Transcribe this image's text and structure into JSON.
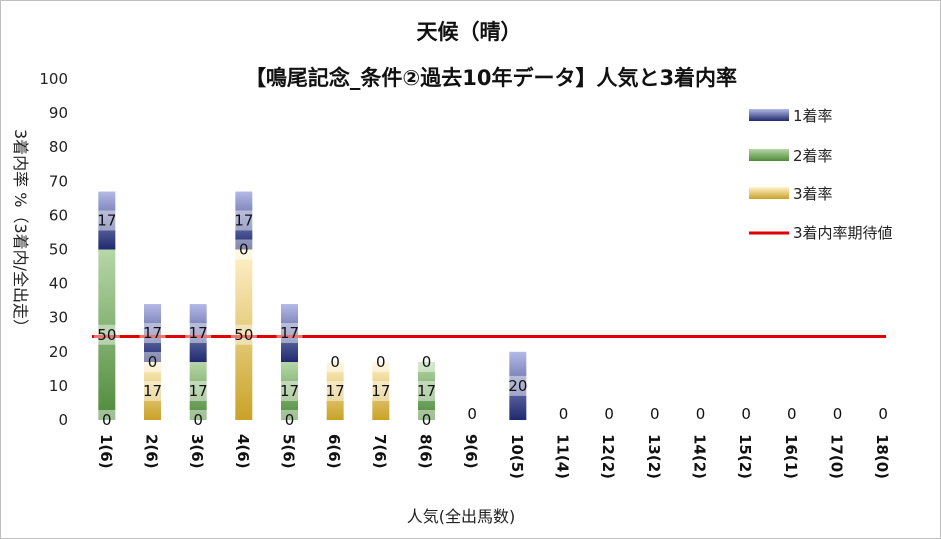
{
  "chart_data": {
    "type": "bar",
    "title": "天候（晴）",
    "subtitle": "【鳴尾記念_条件②過去10年データ】人気と3着内率",
    "xlabel": "人気(全出馬数)",
    "ylabel": "3着内率 %（3着内/全出走）",
    "ylim": [
      0,
      100
    ],
    "yticks": [
      "0",
      "10",
      "20",
      "30",
      "40",
      "50",
      "60",
      "70",
      "80",
      "90",
      "100"
    ],
    "grid": false,
    "legend_position": "right",
    "stacked": true,
    "categories": [
      "1(6)",
      "2(6)",
      "3(6)",
      "4(6)",
      "5(6)",
      "6(6)",
      "7(6)",
      "8(6)",
      "9(6)",
      "10(5)",
      "11(4)",
      "12(2)",
      "13(2)",
      "14(2)",
      "15(2)",
      "16(1)",
      "17(0)",
      "18(0)"
    ],
    "series": [
      {
        "name": "3着率",
        "color": "#c9a227",
        "values": [
          0,
          17,
          0,
          50,
          0,
          17,
          17,
          0,
          0,
          0,
          0,
          0,
          0,
          0,
          0,
          0,
          0,
          0
        ]
      },
      {
        "name": "2着率",
        "color": "#6aa84f",
        "values": [
          50,
          0,
          17,
          0,
          17,
          0,
          0,
          17,
          0,
          0,
          0,
          0,
          0,
          0,
          0,
          0,
          0,
          0
        ]
      },
      {
        "name": "1着率",
        "color": "#2f3f8f",
        "values": [
          17,
          17,
          17,
          17,
          17,
          0,
          0,
          0,
          0,
          20,
          0,
          0,
          0,
          0,
          0,
          0,
          0,
          0
        ]
      }
    ],
    "data_labels": {
      "1(6)": [
        "0",
        "50",
        "17"
      ],
      "2(6)": [
        "17",
        "0",
        "17"
      ],
      "3(6)": [
        "0",
        "17",
        "17"
      ],
      "4(6)": [
        "50",
        "0",
        "17"
      ],
      "5(6)": [
        "0",
        "17",
        "17"
      ],
      "6(6)": [
        "17",
        "0"
      ],
      "7(6)": [
        "17",
        "0"
      ],
      "8(6)": [
        "0",
        "17",
        "0"
      ],
      "9(6)": [
        "0"
      ],
      "10(5)": [
        "20"
      ],
      "11(4)": [
        "0"
      ],
      "12(2)": [
        "0"
      ],
      "13(2)": [
        "0"
      ],
      "14(2)": [
        "0"
      ],
      "15(2)": [
        "0"
      ],
      "16(1)": [
        "0"
      ],
      "17(0)": [
        "0"
      ],
      "18(0)": [
        "0"
      ]
    },
    "reference_line": {
      "name": "3着内率期待値",
      "value": 24.5,
      "color": "#e00000"
    }
  }
}
